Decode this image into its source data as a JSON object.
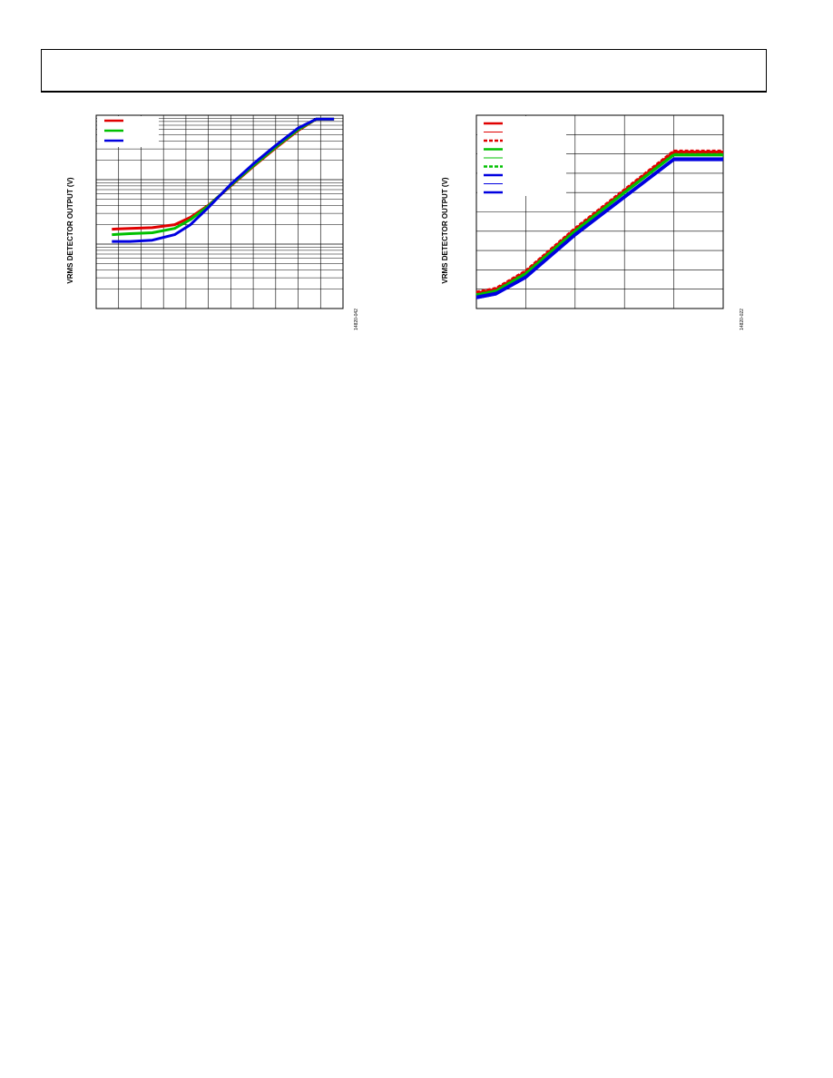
{
  "chart_data": [
    {
      "type": "line",
      "title": "",
      "xlabel": "",
      "ylabel": "VRMS DETECTOR OUTPUT (V)",
      "figure_id": "14820-042",
      "ylog": true,
      "grid": true,
      "legend": "top-left",
      "xlim": [
        0,
        11
      ],
      "ylim": [
        0.01,
        10
      ],
      "series": [
        {
          "color": "#e00000",
          "style": "solid",
          "x": [
            0.7,
            1.5,
            2.5,
            3.5,
            4.2,
            5.0,
            6.0,
            7.0,
            8.0,
            9.0,
            9.8,
            10.6
          ],
          "y": [
            0.17,
            0.175,
            0.18,
            0.2,
            0.26,
            0.4,
            0.8,
            1.6,
            3.1,
            5.8,
            8.7,
            8.7
          ]
        },
        {
          "color": "#00c000",
          "style": "solid",
          "x": [
            0.7,
            1.5,
            2.5,
            3.5,
            4.2,
            5.0,
            6.0,
            7.0,
            8.0,
            9.0,
            9.8,
            10.6
          ],
          "y": [
            0.14,
            0.145,
            0.15,
            0.175,
            0.24,
            0.39,
            0.82,
            1.65,
            3.2,
            6.0,
            8.7,
            8.7
          ]
        },
        {
          "color": "#0000e0",
          "style": "solid",
          "x": [
            0.7,
            1.5,
            2.5,
            3.5,
            4.2,
            5.0,
            6.0,
            7.0,
            8.0,
            9.0,
            9.8,
            10.6
          ],
          "y": [
            0.11,
            0.11,
            0.115,
            0.14,
            0.2,
            0.37,
            0.85,
            1.75,
            3.4,
            6.3,
            8.7,
            8.7
          ]
        }
      ]
    },
    {
      "type": "line",
      "title": "",
      "xlabel": "",
      "ylabel": "VRMS DETECTOR OUTPUT (V)",
      "figure_id": "14820-022",
      "ylog": false,
      "grid": true,
      "legend": "top-left",
      "xlim": [
        0,
        5
      ],
      "ylim": [
        0,
        10
      ],
      "series": [
        {
          "color": "#e00000",
          "style": "solid",
          "x": [
            0,
            0.4,
            1,
            2,
            3,
            4,
            5
          ],
          "y": [
            0.8,
            1.0,
            1.9,
            4.1,
            6.1,
            8.1,
            8.1
          ]
        },
        {
          "color": "#e00000",
          "style": "thin",
          "x": [
            0,
            0.4,
            1,
            2,
            3,
            4,
            5
          ],
          "y": [
            0.75,
            0.95,
            1.85,
            4.05,
            6.05,
            8.05,
            8.05
          ]
        },
        {
          "color": "#e00000",
          "style": "dashed",
          "x": [
            0,
            0.4,
            1,
            2,
            3,
            4,
            5
          ],
          "y": [
            0.85,
            1.05,
            1.95,
            4.15,
            6.15,
            8.15,
            8.15
          ]
        },
        {
          "color": "#00c000",
          "style": "solid",
          "x": [
            0,
            0.4,
            1,
            2,
            3,
            4,
            5
          ],
          "y": [
            0.7,
            0.9,
            1.8,
            4.0,
            6.0,
            7.95,
            7.95
          ]
        },
        {
          "color": "#00c000",
          "style": "thin",
          "x": [
            0,
            0.4,
            1,
            2,
            3,
            4,
            5
          ],
          "y": [
            0.65,
            0.85,
            1.75,
            3.95,
            5.95,
            7.9,
            7.9
          ]
        },
        {
          "color": "#00c000",
          "style": "dashed",
          "x": [
            0,
            0.4,
            1,
            2,
            3,
            4,
            5
          ],
          "y": [
            0.72,
            0.92,
            1.82,
            4.02,
            6.02,
            7.97,
            7.97
          ]
        },
        {
          "color": "#0000e0",
          "style": "solid",
          "x": [
            0,
            0.4,
            1,
            2,
            3,
            4,
            5
          ],
          "y": [
            0.55,
            0.75,
            1.6,
            3.8,
            5.75,
            7.7,
            7.7
          ]
        },
        {
          "color": "#0000e0",
          "style": "thin",
          "x": [
            0,
            0.4,
            1,
            2,
            3,
            4,
            5
          ],
          "y": [
            0.5,
            0.7,
            1.55,
            3.75,
            5.7,
            7.65,
            7.65
          ]
        },
        {
          "color": "#0000e0",
          "style": "solid",
          "x": [
            0,
            0.4,
            1,
            2,
            3,
            4,
            5
          ],
          "y": [
            0.6,
            0.8,
            1.65,
            3.85,
            5.8,
            7.75,
            7.75
          ]
        }
      ]
    }
  ]
}
